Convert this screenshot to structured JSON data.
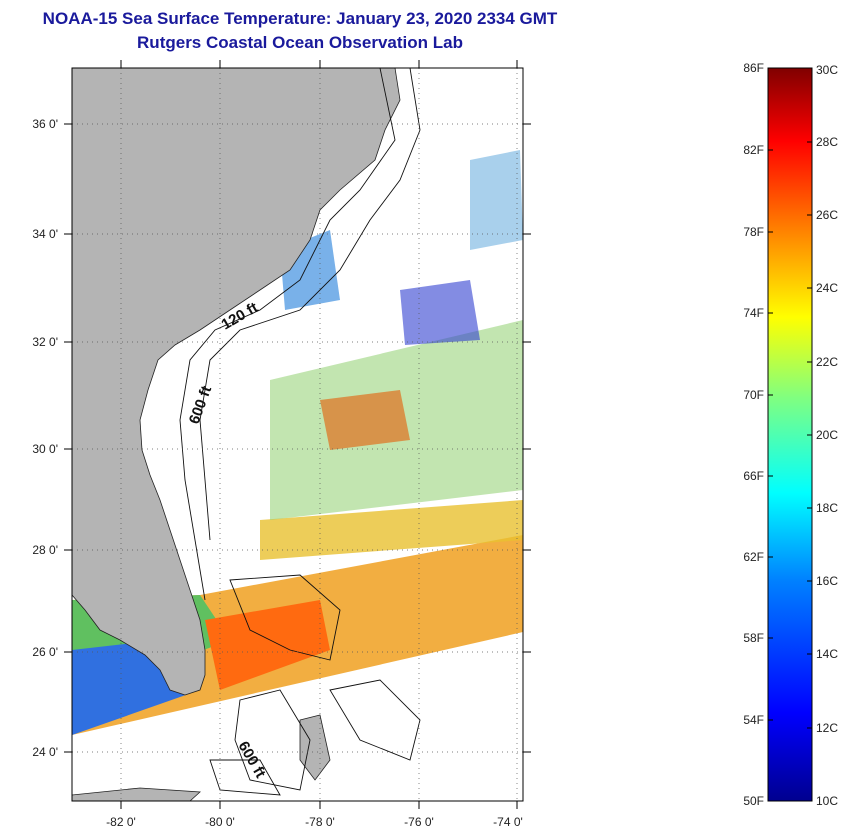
{
  "title": {
    "line1": "NOAA-15 Sea Surface Temperature:  January 23, 2020 2334 GMT",
    "line2": "Rutgers Coastal Ocean Observation Lab"
  },
  "map": {
    "latitude_labels": [
      "36 0'",
      "34 0'",
      "32 0'",
      "30 0'",
      "28 0'",
      "26 0'",
      "24 0'"
    ],
    "longitude_labels": [
      "-82 0'",
      "-80 0'",
      "-78 0'",
      "-76 0'",
      "-74 0'"
    ],
    "contour_labels": [
      "120 ft",
      "600 ft",
      "600 ft"
    ],
    "land_color": "#b4b4b4"
  },
  "colorbar": {
    "fahrenheit_labels": [
      "86F",
      "82F",
      "78F",
      "74F",
      "70F",
      "66F",
      "62F",
      "58F",
      "54F",
      "50F"
    ],
    "celsius_labels": [
      "30C",
      "28C",
      "26C",
      "24C",
      "22C",
      "20C",
      "18C",
      "16C",
      "14C",
      "12C",
      "10C"
    ],
    "colors": [
      "#00008f",
      "#0000ff",
      "#0080ff",
      "#00ffff",
      "#80ff80",
      "#ffff00",
      "#ff8000",
      "#ff0000",
      "#800000"
    ]
  }
}
